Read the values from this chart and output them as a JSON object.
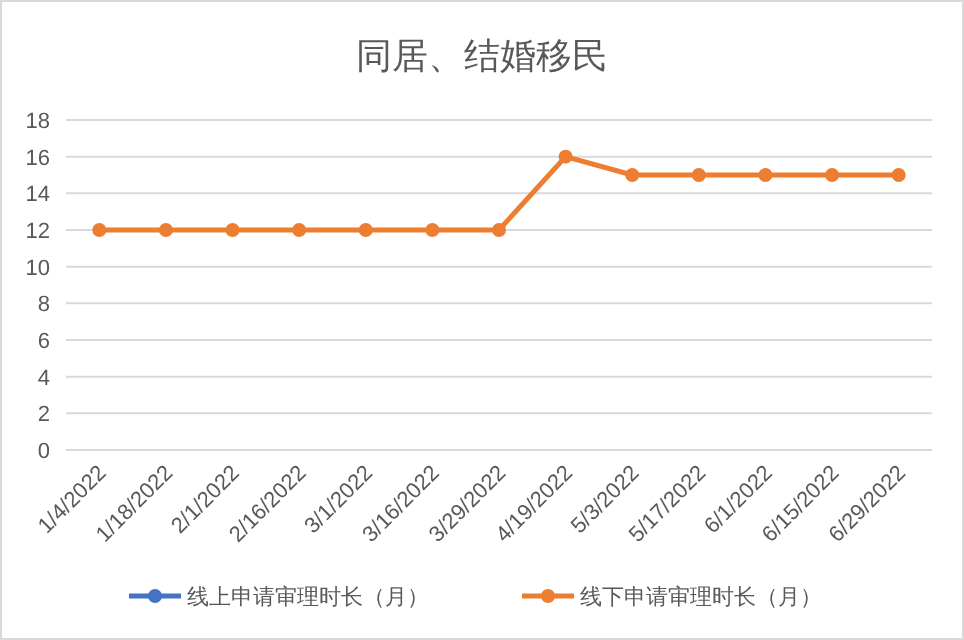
{
  "chart_data": {
    "type": "line",
    "title": "同居、结婚移民",
    "categories": [
      "1/4/2022",
      "1/18/2022",
      "2/1/2022",
      "2/16/2022",
      "3/1/2022",
      "3/16/2022",
      "3/29/2022",
      "4/19/2022",
      "5/3/2022",
      "5/17/2022",
      "6/1/2022",
      "6/15/2022",
      "6/29/2022"
    ],
    "series": [
      {
        "name": "线上申请审理时长（月）",
        "color": "#4472c4",
        "values": [
          null,
          null,
          null,
          null,
          null,
          null,
          null,
          null,
          null,
          null,
          null,
          null,
          null
        ]
      },
      {
        "name": "线下申请审理时长（月）",
        "color": "#ed7d31",
        "values": [
          12,
          12,
          12,
          12,
          12,
          12,
          12,
          16,
          15,
          15,
          15,
          15,
          15
        ]
      }
    ],
    "ylim": [
      0,
      18
    ],
    "yticks": [
      0,
      2,
      4,
      6,
      8,
      10,
      12,
      14,
      16,
      18
    ],
    "grid": "y",
    "legend": "bottom",
    "marker": "circle",
    "line_style": "solid"
  }
}
